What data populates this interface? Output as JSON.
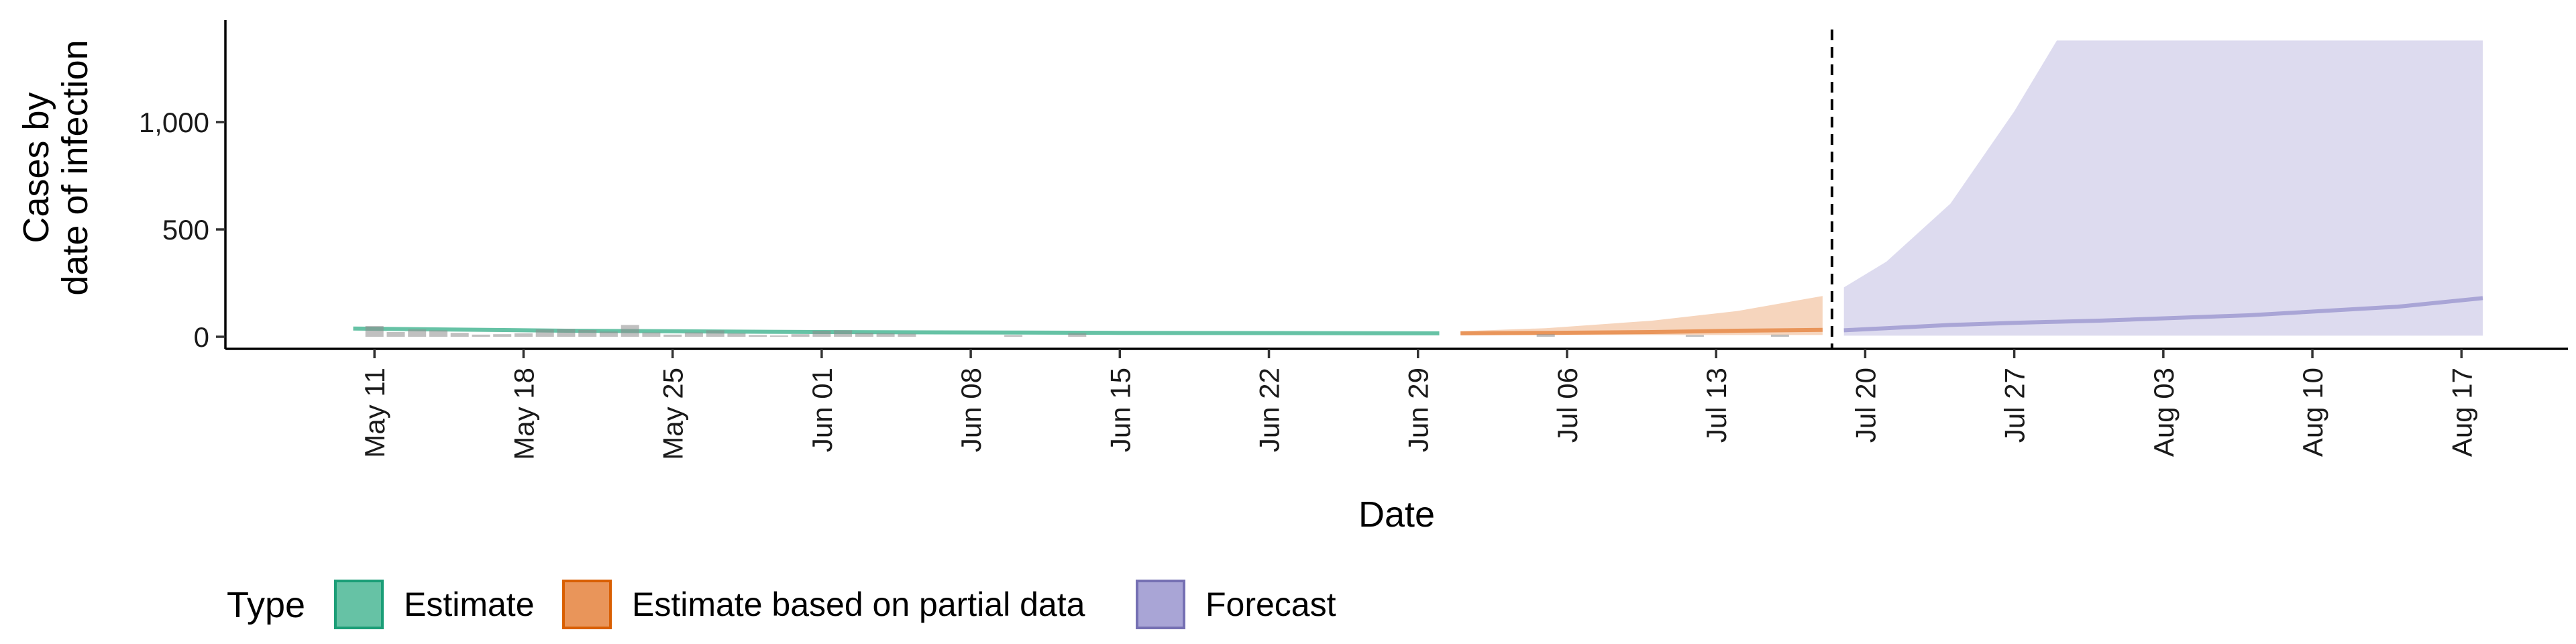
{
  "chart_data": {
    "type": "area",
    "xlabel": "Date",
    "ylabel_lines": [
      "Cases by",
      "date of infection"
    ],
    "ylim": [
      0,
      1400
    ],
    "yticks": [
      0,
      500,
      1000
    ],
    "ytick_labels": [
      "0",
      "500",
      "1,000"
    ],
    "xlim": [
      "2020-05-04",
      "2020-08-22"
    ],
    "xticks": [
      "2020-05-11",
      "2020-05-18",
      "2020-05-25",
      "2020-06-01",
      "2020-06-08",
      "2020-06-15",
      "2020-06-22",
      "2020-06-29",
      "2020-07-06",
      "2020-07-13",
      "2020-07-20",
      "2020-07-27",
      "2020-08-03",
      "2020-08-10",
      "2020-08-17"
    ],
    "xtick_labels": [
      "May 11",
      "May 18",
      "May 25",
      "Jun 01",
      "Jun 08",
      "Jun 15",
      "Jun 22",
      "Jun 29",
      "Jul 06",
      "Jul 13",
      "Jul 20",
      "Jul 27",
      "Aug 03",
      "Aug 10",
      "Aug 17"
    ],
    "vline_date": "2020-07-18",
    "legend": {
      "title": "Type",
      "position": "bottom",
      "items": [
        {
          "label": "Estimate",
          "fill": "#66c2a5",
          "stroke": "#1b9e77"
        },
        {
          "label": "Estimate based on partial data",
          "fill": "#e9955a",
          "stroke": "#d95f02"
        },
        {
          "label": "Forecast",
          "fill": "#a9a5d6",
          "stroke": "#7570b3"
        }
      ]
    },
    "observed_cases": {
      "x": [
        "2020-05-11",
        "2020-05-12",
        "2020-05-13",
        "2020-05-14",
        "2020-05-15",
        "2020-05-16",
        "2020-05-17",
        "2020-05-18",
        "2020-05-19",
        "2020-05-20",
        "2020-05-21",
        "2020-05-22",
        "2020-05-23",
        "2020-05-24",
        "2020-05-25",
        "2020-05-26",
        "2020-05-27",
        "2020-05-28",
        "2020-05-29",
        "2020-05-30",
        "2020-05-31",
        "2020-06-01",
        "2020-06-02",
        "2020-06-03",
        "2020-06-04",
        "2020-06-05",
        "2020-06-10",
        "2020-06-13",
        "2020-07-05",
        "2020-07-12",
        "2020-07-16"
      ],
      "y": [
        50,
        22,
        34,
        30,
        18,
        10,
        12,
        16,
        34,
        36,
        32,
        24,
        55,
        20,
        10,
        20,
        30,
        16,
        8,
        6,
        12,
        28,
        30,
        18,
        16,
        14,
        8,
        16,
        12,
        8,
        10
      ]
    },
    "series": [
      {
        "name": "Estimate",
        "x": [
          "2020-05-10",
          "2020-05-20",
          "2020-06-01",
          "2020-06-15",
          "2020-06-30"
        ],
        "median": [
          38,
          28,
          22,
          18,
          16
        ],
        "lower": [
          32,
          22,
          16,
          12,
          10
        ],
        "upper": [
          44,
          34,
          28,
          24,
          24
        ]
      },
      {
        "name": "Estimate based on partial data",
        "x": [
          "2020-07-01",
          "2020-07-05",
          "2020-07-10",
          "2020-07-14",
          "2020-07-18"
        ],
        "median": [
          16,
          18,
          22,
          28,
          32
        ],
        "lower": [
          8,
          8,
          8,
          8,
          8
        ],
        "upper": [
          26,
          40,
          75,
          120,
          190
        ]
      },
      {
        "name": "Forecast",
        "x": [
          "2020-07-19",
          "2020-07-21",
          "2020-07-24",
          "2020-07-27",
          "2020-07-29",
          "2020-07-31",
          "2020-08-07",
          "2020-08-14",
          "2020-08-18"
        ],
        "median": [
          30,
          40,
          55,
          65,
          70,
          75,
          100,
          140,
          180
        ],
        "lower": [
          5,
          5,
          5,
          5,
          5,
          5,
          5,
          5,
          5
        ],
        "upper": [
          230,
          350,
          620,
          1050,
          1380,
          1380,
          1380,
          1380,
          1380
        ]
      }
    ]
  }
}
